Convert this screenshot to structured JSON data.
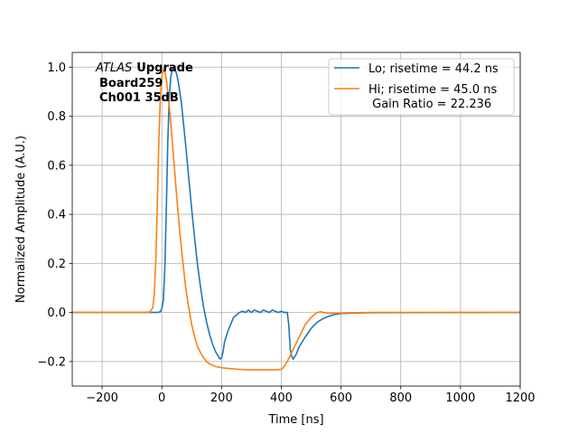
{
  "chart_data": {
    "type": "line",
    "title": "",
    "xlabel": "Time [ns]",
    "ylabel": "Normalized Amplitude (A.U.)",
    "xlim": [
      -300,
      1200
    ],
    "ylim": [
      -0.3,
      1.06
    ],
    "xticks": [
      -200,
      0,
      200,
      400,
      600,
      800,
      1000,
      1200
    ],
    "yticks": [
      -0.2,
      0.0,
      0.2,
      0.4,
      0.6,
      0.8,
      1.0
    ],
    "xtick_labels": [
      "−200",
      "0",
      "200",
      "400",
      "600",
      "800",
      "1000",
      "1200"
    ],
    "ytick_labels": [
      "−0.2",
      "0.0",
      "0.2",
      "0.4",
      "0.6",
      "0.8",
      "1.0"
    ],
    "grid": true,
    "legend_position": "top-right",
    "annotation": {
      "italic": "ATLAS",
      "bold": "Upgrade",
      "line2": "Board259",
      "line3": "Ch001 35dB"
    },
    "series": [
      {
        "name": "Lo; risetime = 44.2 ns",
        "color": "#1f77b4",
        "x": [
          -300,
          -50,
          -15,
          -5,
          0,
          5,
          10,
          15,
          20,
          25,
          30,
          35,
          40,
          45,
          50,
          55,
          60,
          65,
          70,
          80,
          90,
          100,
          110,
          120,
          130,
          140,
          150,
          160,
          170,
          180,
          190,
          195,
          200,
          205,
          210,
          220,
          230,
          240,
          250,
          260,
          270,
          280,
          290,
          300,
          310,
          320,
          330,
          340,
          350,
          360,
          370,
          380,
          390,
          400,
          410,
          420,
          425,
          430,
          435,
          440,
          450,
          460,
          480,
          500,
          520,
          540,
          560,
          580,
          600,
          650,
          700,
          1200
        ],
        "y": [
          0.0,
          0.0,
          0.0,
          0.003,
          0.015,
          0.05,
          0.18,
          0.42,
          0.7,
          0.88,
          0.96,
          0.99,
          1.0,
          0.99,
          0.97,
          0.94,
          0.9,
          0.86,
          0.8,
          0.68,
          0.55,
          0.42,
          0.3,
          0.19,
          0.1,
          0.02,
          -0.04,
          -0.09,
          -0.13,
          -0.16,
          -0.18,
          -0.19,
          -0.185,
          -0.16,
          -0.12,
          -0.08,
          -0.05,
          -0.02,
          -0.01,
          0.0,
          0.005,
          0.0,
          0.01,
          0.0,
          0.01,
          0.005,
          0.0,
          0.01,
          0.005,
          0.0,
          0.01,
          0.005,
          0.0,
          0.005,
          0.0,
          0.0,
          -0.05,
          -0.15,
          -0.18,
          -0.19,
          -0.17,
          -0.14,
          -0.1,
          -0.065,
          -0.04,
          -0.025,
          -0.015,
          -0.008,
          -0.004,
          -0.002,
          -0.001,
          0.0
        ]
      },
      {
        "name": "Hi; risetime = 45.0 ns\n Gain Ratio = 22.236",
        "color": "#ff7f0e",
        "x": [
          -300,
          -60,
          -40,
          -30,
          -25,
          -20,
          -15,
          -10,
          -5,
          0,
          5,
          10,
          15,
          20,
          25,
          30,
          40,
          50,
          60,
          70,
          80,
          90,
          100,
          110,
          120,
          130,
          140,
          150,
          160,
          170,
          180,
          200,
          220,
          240,
          260,
          280,
          300,
          340,
          380,
          400,
          410,
          420,
          440,
          460,
          480,
          500,
          520,
          535,
          540,
          560,
          600,
          700,
          1200
        ],
        "y": [
          0.0,
          0.0,
          0.002,
          0.02,
          0.08,
          0.22,
          0.45,
          0.7,
          0.88,
          0.96,
          0.99,
          0.98,
          0.95,
          0.9,
          0.84,
          0.77,
          0.62,
          0.47,
          0.33,
          0.21,
          0.1,
          0.02,
          -0.05,
          -0.1,
          -0.14,
          -0.165,
          -0.185,
          -0.2,
          -0.21,
          -0.215,
          -0.22,
          -0.225,
          -0.228,
          -0.23,
          -0.232,
          -0.233,
          -0.234,
          -0.234,
          -0.234,
          -0.232,
          -0.22,
          -0.2,
          -0.15,
          -0.1,
          -0.05,
          -0.02,
          0.0,
          0.003,
          0.0,
          -0.003,
          -0.002,
          0.0,
          0.0
        ]
      }
    ]
  }
}
